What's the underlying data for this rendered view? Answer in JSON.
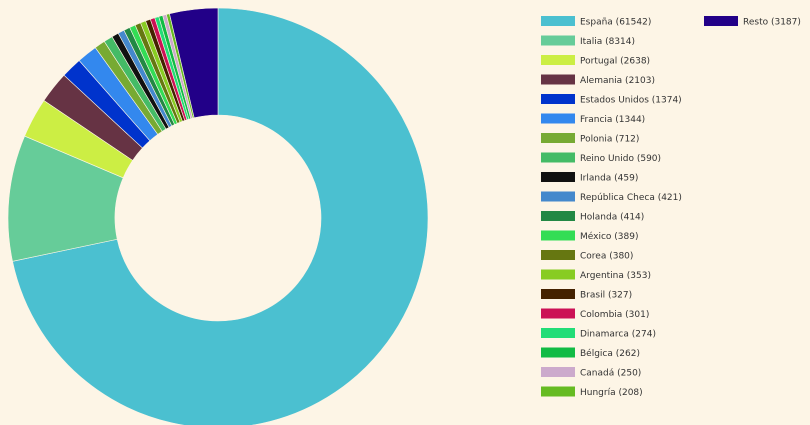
{
  "chart_data": {
    "type": "pie",
    "variant": "doughnut",
    "title": "",
    "categories": [
      "España (61542)",
      "Italia (8314)",
      "Portugal (2638)",
      "Alemania (2103)",
      "Estados Unidos (1374)",
      "Francia (1344)",
      "Polonia (712)",
      "Reino Unido (590)",
      "Irlanda (459)",
      "República Checa (421)",
      "Holanda (414)",
      "México (389)",
      "Corea (380)",
      "Argentina (353)",
      "Brasil (327)",
      "Colombia (301)",
      "Dinamarca (274)",
      "Bélgica (262)",
      "Canadá (250)",
      "Hungría (208)",
      "Resto (3187)"
    ],
    "values": [
      61542,
      8314,
      2638,
      2103,
      1374,
      1344,
      712,
      590,
      459,
      421,
      414,
      389,
      380,
      353,
      327,
      301,
      274,
      262,
      250,
      208,
      3187
    ],
    "colors": [
      "#4bc0d0",
      "#66cc99",
      "#ccee44",
      "#663344",
      "#0033cc",
      "#3388ee",
      "#77aa33",
      "#44bb66",
      "#111111",
      "#4488cc",
      "#228844",
      "#33dd55",
      "#667711",
      "#88cc22",
      "#442200",
      "#cc1155",
      "#22dd77",
      "#11bb44",
      "#ccaacc",
      "#66bb22",
      "#220088"
    ],
    "legend_position": "right"
  }
}
